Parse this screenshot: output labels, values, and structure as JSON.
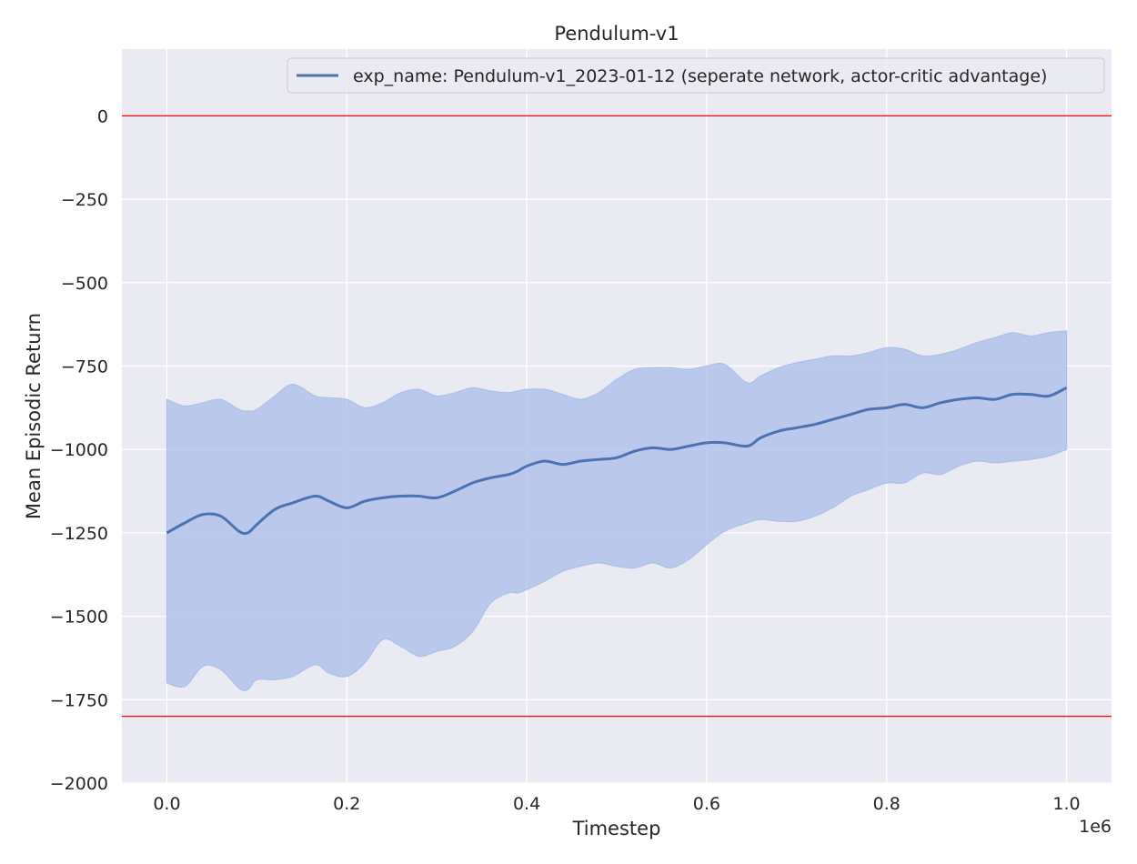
{
  "chart_data": {
    "type": "line",
    "title": "Pendulum-v1",
    "xlabel": "Timestep",
    "ylabel": "Mean Episodic Return",
    "x_offset_label": "1e6",
    "xlim": [
      -0.05,
      1.05
    ],
    "ylim": [
      -2000,
      200
    ],
    "x_ticks": [
      0.0,
      0.2,
      0.4,
      0.6,
      0.8,
      1.0
    ],
    "x_tick_labels": [
      "0.0",
      "0.2",
      "0.4",
      "0.6",
      "0.8",
      "1.0"
    ],
    "y_ticks": [
      0,
      -250,
      -500,
      -750,
      -1000,
      -1250,
      -1500,
      -1750,
      -2000
    ],
    "y_tick_labels": [
      "0",
      "−250",
      "−500",
      "−750",
      "−1000",
      "−1250",
      "−1500",
      "−1750",
      "−2000"
    ],
    "grid": true,
    "legend_position": "top-right",
    "colors": {
      "background": "#eaeaf2",
      "grid": "#ffffff",
      "line": "#4c72b0",
      "band": "#aebfea",
      "reference": "#ff0000"
    },
    "reference_lines": [
      0,
      -1800
    ],
    "series": [
      {
        "name": "exp_name: Pendulum-v1_2023-01-12 (seperate network, actor-critic advantage)",
        "x": [
          0.0,
          0.02,
          0.04,
          0.06,
          0.08,
          0.09,
          0.1,
          0.12,
          0.14,
          0.165,
          0.18,
          0.2,
          0.22,
          0.24,
          0.26,
          0.28,
          0.3,
          0.32,
          0.34,
          0.36,
          0.38,
          0.39,
          0.4,
          0.42,
          0.44,
          0.46,
          0.48,
          0.5,
          0.52,
          0.54,
          0.56,
          0.58,
          0.6,
          0.62,
          0.645,
          0.66,
          0.68,
          0.7,
          0.72,
          0.74,
          0.76,
          0.78,
          0.8,
          0.82,
          0.84,
          0.86,
          0.88,
          0.9,
          0.92,
          0.94,
          0.96,
          0.98,
          1.0
        ],
        "y": [
          -1250,
          -1220,
          -1195,
          -1200,
          -1245,
          -1250,
          -1225,
          -1180,
          -1160,
          -1140,
          -1155,
          -1175,
          -1155,
          -1145,
          -1140,
          -1140,
          -1145,
          -1125,
          -1100,
          -1085,
          -1075,
          -1065,
          -1050,
          -1035,
          -1045,
          -1035,
          -1030,
          -1025,
          -1005,
          -995,
          -1000,
          -990,
          -980,
          -980,
          -990,
          -965,
          -945,
          -935,
          -925,
          -910,
          -895,
          -880,
          -875,
          -865,
          -875,
          -860,
          -850,
          -845,
          -850,
          -835,
          -835,
          -840,
          -815
        ],
        "upper": [
          -850,
          -870,
          -860,
          -850,
          -880,
          -885,
          -880,
          -840,
          -805,
          -840,
          -845,
          -850,
          -875,
          -860,
          -830,
          -820,
          -840,
          -830,
          -815,
          -825,
          -830,
          -825,
          -820,
          -820,
          -835,
          -850,
          -830,
          -790,
          -760,
          -755,
          -755,
          -760,
          -750,
          -745,
          -800,
          -780,
          -755,
          -740,
          -730,
          -720,
          -720,
          -710,
          -695,
          -700,
          -720,
          -715,
          -700,
          -680,
          -665,
          -650,
          -660,
          -650,
          -645
        ],
        "lower": [
          -1700,
          -1710,
          -1650,
          -1660,
          -1715,
          -1720,
          -1690,
          -1690,
          -1680,
          -1645,
          -1670,
          -1680,
          -1640,
          -1570,
          -1590,
          -1620,
          -1605,
          -1590,
          -1545,
          -1460,
          -1430,
          -1430,
          -1420,
          -1395,
          -1365,
          -1350,
          -1340,
          -1350,
          -1355,
          -1340,
          -1355,
          -1330,
          -1285,
          -1245,
          -1220,
          -1210,
          -1215,
          -1215,
          -1200,
          -1175,
          -1140,
          -1120,
          -1100,
          -1100,
          -1070,
          -1075,
          -1050,
          -1035,
          -1040,
          -1035,
          -1030,
          -1020,
          -1000
        ]
      }
    ]
  }
}
